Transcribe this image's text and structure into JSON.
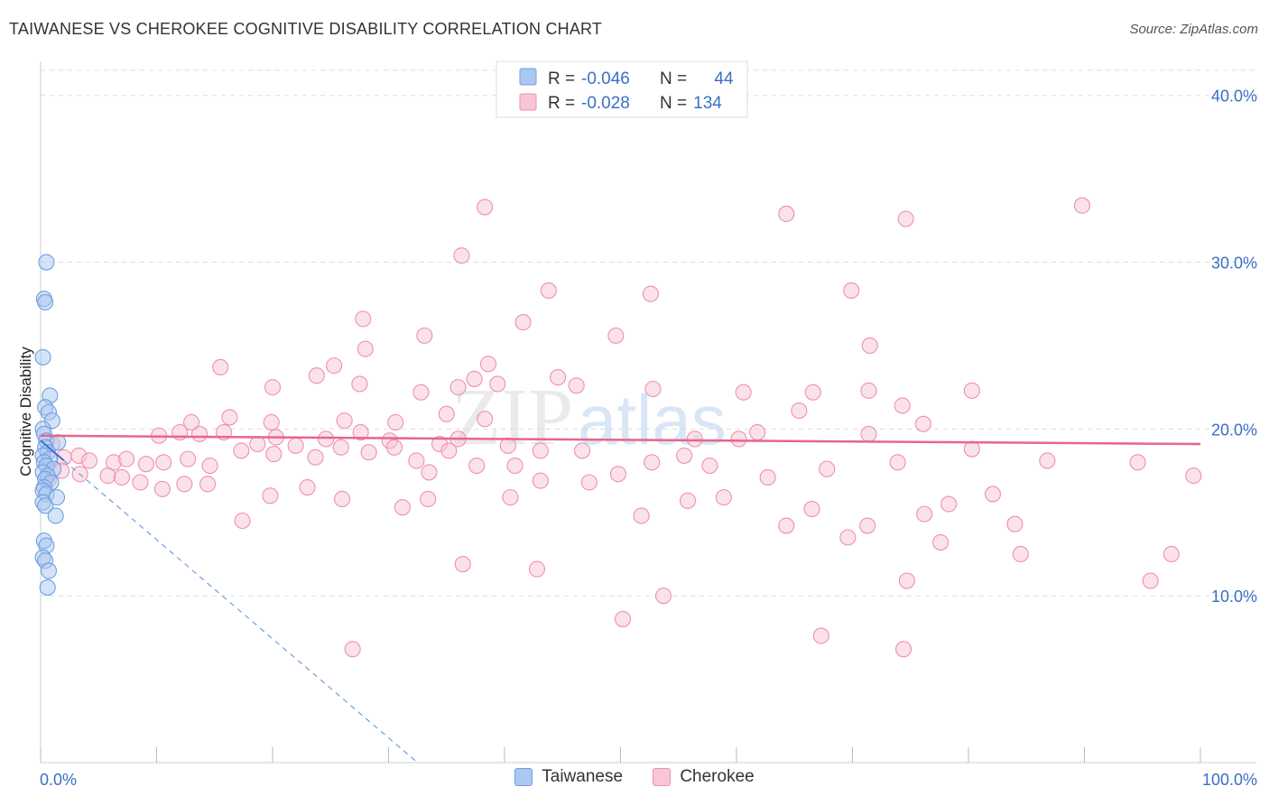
{
  "title": "TAIWANESE VS CHEROKEE COGNITIVE DISABILITY CORRELATION CHART",
  "source": "Source: ZipAtlas.com",
  "watermark": {
    "zip": "ZIP",
    "atlas": "atlas"
  },
  "legend": {
    "rows": [
      {
        "r_label": "R =",
        "r_value": "-0.046",
        "n_label": "N =",
        "n_value": "44"
      },
      {
        "r_label": "R =",
        "r_value": "-0.028",
        "n_label": "N =",
        "n_value": "134"
      }
    ]
  },
  "chart_data": {
    "type": "scatter",
    "xlabel": "",
    "ylabel": "Cognitive Disability",
    "xlim": [
      0,
      100
    ],
    "ylim": [
      0,
      41.5
    ],
    "x_tick_labels": [
      "0.0%",
      "100.0%"
    ],
    "y_ticks": [
      10,
      20,
      30,
      40
    ],
    "y_tick_labels": [
      "10.0%",
      "20.0%",
      "30.0%",
      "40.0%"
    ],
    "grid": true,
    "legend_position": "top-center",
    "series": [
      {
        "name": "Taiwanese",
        "color": "#6f9fe0",
        "fill": "#aac8f0",
        "trend": {
          "x": [
            0,
            32.5
          ],
          "y": [
            19.3,
            0
          ]
        },
        "trend_solid_until": 2.0,
        "points": [
          [
            0.5,
            30
          ],
          [
            0.3,
            27.8
          ],
          [
            0.4,
            27.6
          ],
          [
            0.2,
            24.3
          ],
          [
            0.8,
            22
          ],
          [
            0.4,
            21.3
          ],
          [
            0.7,
            21
          ],
          [
            1.0,
            20.5
          ],
          [
            0.2,
            20
          ],
          [
            0.3,
            19.7
          ],
          [
            0.5,
            19.3
          ],
          [
            1.5,
            19.2
          ],
          [
            0.4,
            18.9
          ],
          [
            0.6,
            18.6
          ],
          [
            0.2,
            18.4
          ],
          [
            0.8,
            18.2
          ],
          [
            0.3,
            18.0
          ],
          [
            0.5,
            17.8
          ],
          [
            1.1,
            17.6
          ],
          [
            0.2,
            17.4
          ],
          [
            0.6,
            17.2
          ],
          [
            0.4,
            17.0
          ],
          [
            0.9,
            16.8
          ],
          [
            0.3,
            16.5
          ],
          [
            0.2,
            16.3
          ],
          [
            0.5,
            16.1
          ],
          [
            1.4,
            15.9
          ],
          [
            0.2,
            15.6
          ],
          [
            0.4,
            15.4
          ],
          [
            1.3,
            14.8
          ],
          [
            0.3,
            13.3
          ],
          [
            0.5,
            13.0
          ],
          [
            0.2,
            12.3
          ],
          [
            0.4,
            12.1
          ],
          [
            0.7,
            11.5
          ],
          [
            0.6,
            10.5
          ]
        ]
      },
      {
        "name": "Cherokee",
        "color": "#ef8fb0",
        "fill": "#f8c6d6",
        "trend": {
          "x": [
            0,
            100
          ],
          "y": [
            19.6,
            19.1
          ]
        },
        "points": [
          [
            38.3,
            33.3
          ],
          [
            64.3,
            32.9
          ],
          [
            74.6,
            32.6
          ],
          [
            89.8,
            33.4
          ],
          [
            36.3,
            30.4
          ],
          [
            43.8,
            28.3
          ],
          [
            52.6,
            28.1
          ],
          [
            69.9,
            28.3
          ],
          [
            27.8,
            26.6
          ],
          [
            41.6,
            26.4
          ],
          [
            33.1,
            25.6
          ],
          [
            49.6,
            25.6
          ],
          [
            28.0,
            24.8
          ],
          [
            71.5,
            25
          ],
          [
            15.5,
            23.7
          ],
          [
            23.8,
            23.2
          ],
          [
            25.3,
            23.8
          ],
          [
            38.6,
            23.9
          ],
          [
            37.4,
            23.0
          ],
          [
            44.6,
            23.1
          ],
          [
            20.0,
            22.5
          ],
          [
            27.5,
            22.7
          ],
          [
            32.8,
            22.2
          ],
          [
            36.0,
            22.5
          ],
          [
            39.4,
            22.7
          ],
          [
            46.2,
            22.6
          ],
          [
            52.8,
            22.4
          ],
          [
            60.6,
            22.2
          ],
          [
            66.6,
            22.2
          ],
          [
            71.4,
            22.3
          ],
          [
            74.3,
            21.4
          ],
          [
            65.4,
            21.1
          ],
          [
            80.3,
            22.3
          ],
          [
            76.1,
            20.3
          ],
          [
            16.3,
            20.7
          ],
          [
            13.0,
            20.4
          ],
          [
            19.9,
            20.4
          ],
          [
            26.2,
            20.5
          ],
          [
            30.6,
            20.4
          ],
          [
            35.0,
            20.9
          ],
          [
            38.3,
            20.6
          ],
          [
            12.0,
            19.8
          ],
          [
            10.2,
            19.6
          ],
          [
            13.7,
            19.7
          ],
          [
            15.8,
            19.8
          ],
          [
            20.3,
            19.5
          ],
          [
            24.6,
            19.4
          ],
          [
            27.6,
            19.8
          ],
          [
            30.1,
            19.3
          ],
          [
            34.4,
            19.1
          ],
          [
            36.0,
            19.4
          ],
          [
            40.3,
            19.0
          ],
          [
            43.1,
            18.7
          ],
          [
            46.7,
            18.7
          ],
          [
            56.4,
            19.4
          ],
          [
            60.2,
            19.4
          ],
          [
            61.8,
            19.8
          ],
          [
            71.4,
            19.7
          ],
          [
            80.3,
            18.8
          ],
          [
            86.8,
            18.1
          ],
          [
            94.6,
            18.0
          ],
          [
            99.4,
            17.2
          ],
          [
            1.0,
            19.1
          ],
          [
            2.0,
            18.3
          ],
          [
            3.3,
            18.4
          ],
          [
            4.2,
            18.1
          ],
          [
            6.3,
            18.0
          ],
          [
            7.4,
            18.2
          ],
          [
            9.1,
            17.9
          ],
          [
            10.6,
            18.0
          ],
          [
            12.7,
            18.2
          ],
          [
            14.6,
            17.8
          ],
          [
            17.3,
            18.7
          ],
          [
            18.7,
            19.1
          ],
          [
            20.1,
            18.5
          ],
          [
            22.0,
            19.0
          ],
          [
            23.7,
            18.3
          ],
          [
            25.9,
            18.9
          ],
          [
            28.3,
            18.6
          ],
          [
            30.5,
            18.9
          ],
          [
            32.4,
            18.1
          ],
          [
            33.5,
            17.4
          ],
          [
            35.2,
            18.7
          ],
          [
            37.6,
            17.8
          ],
          [
            40.9,
            17.8
          ],
          [
            43.1,
            16.9
          ],
          [
            47.3,
            16.8
          ],
          [
            49.8,
            17.3
          ],
          [
            52.7,
            18.0
          ],
          [
            55.5,
            18.4
          ],
          [
            57.7,
            17.8
          ],
          [
            62.7,
            17.1
          ],
          [
            67.8,
            17.6
          ],
          [
            73.9,
            18.0
          ],
          [
            1.8,
            17.5
          ],
          [
            3.4,
            17.3
          ],
          [
            5.8,
            17.2
          ],
          [
            7.0,
            17.1
          ],
          [
            8.6,
            16.8
          ],
          [
            10.5,
            16.4
          ],
          [
            12.4,
            16.7
          ],
          [
            14.4,
            16.7
          ],
          [
            19.8,
            16.0
          ],
          [
            23.0,
            16.5
          ],
          [
            26.0,
            15.8
          ],
          [
            31.2,
            15.3
          ],
          [
            33.4,
            15.8
          ],
          [
            40.5,
            15.9
          ],
          [
            51.8,
            14.8
          ],
          [
            55.8,
            15.7
          ],
          [
            58.9,
            15.9
          ],
          [
            64.3,
            14.2
          ],
          [
            66.5,
            15.2
          ],
          [
            69.6,
            13.5
          ],
          [
            71.3,
            14.2
          ],
          [
            76.2,
            14.9
          ],
          [
            78.3,
            15.5
          ],
          [
            82.1,
            16.1
          ],
          [
            84.0,
            14.3
          ],
          [
            17.4,
            14.5
          ],
          [
            36.4,
            11.9
          ],
          [
            42.8,
            11.6
          ],
          [
            74.7,
            10.9
          ],
          [
            77.6,
            13.2
          ],
          [
            84.5,
            12.5
          ],
          [
            95.7,
            10.9
          ],
          [
            97.5,
            12.5
          ],
          [
            53.7,
            10.0
          ],
          [
            50.2,
            8.6
          ],
          [
            74.4,
            6.8
          ],
          [
            67.3,
            7.6
          ],
          [
            26.9,
            6.8
          ],
          [
            0.7,
            17.0
          ]
        ]
      }
    ]
  }
}
